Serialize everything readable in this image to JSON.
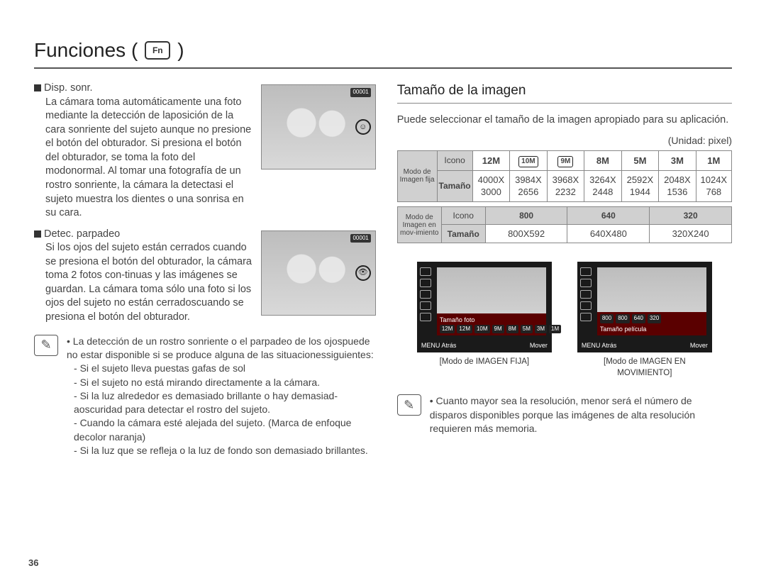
{
  "title": "Funciones (",
  "title_close": ")",
  "fn_icon_text": "Fn",
  "left": {
    "disp_sonr": {
      "heading": "Disp. sonr.",
      "body": "La cámara toma automáticamente una foto mediante la detección de laposición de la cara sonriente del sujeto aunque no presione el botón del obturador. Si presiona el botón del obturador, se toma la foto del modonormal. Al tomar una fotografía de un rostro sonriente, la cámara la detectasi el sujeto muestra los dientes o una sonrisa en su cara.",
      "thumb_badge": "00001",
      "thumb_ring": "☺"
    },
    "detec": {
      "heading": "Detec. parpadeo",
      "body": "Si los ojos del sujeto están cerrados cuando se presiona el botón del obturador, la cámara toma 2 fotos con-tinuas y las imágenes se guardan. La cámara toma sólo una foto si los ojos del sujeto no están cerradoscuando se presiona el botón del obturador.",
      "thumb_badge": "00001",
      "thumb_ring": "👁"
    },
    "note": {
      "lead": "La detección de un rostro sonriente o el parpadeo de los ojospuede no estar disponible si se produce alguna de las situacionessiguientes:",
      "items": [
        "Si el sujeto lleva puestas gafas de sol",
        "Si el sujeto no está mirando directamente a la cámara.",
        "Si la luz alrededor es demasiado brillante o hay demasiad-aoscuridad para detectar el rostro del sujeto.",
        "Cuando la cámara esté alejada del sujeto. (Marca de enfoque decolor naranja)",
        "Si la luz que se refleja o la luz de fondo son demasiado brillantes."
      ]
    }
  },
  "right": {
    "section_title": "Tamaño de la imagen",
    "intro": "Puede seleccionar el tamaño de la imagen apropiado para su aplicación.",
    "unit": "(Unidad: pixel)",
    "table1": {
      "row_label": "Modo de Imagen fija",
      "icono": "Icono",
      "tamano": "Tamaño",
      "icons": [
        "12M",
        "10M",
        "9M",
        "8M",
        "5M",
        "3M",
        "1M"
      ],
      "sizes": [
        "4000X 3000",
        "3984X 2656",
        "3968X 2232",
        "3264X 2448",
        "2592X 1944",
        "2048X 1536",
        "1024X 768"
      ]
    },
    "table2": {
      "row_label": "Modo de Imagen en mov-imiento",
      "icono": "Icono",
      "tamano": "Tamaño",
      "icons": [
        "800",
        "640",
        "320"
      ],
      "sizes": [
        "800X592",
        "640X480",
        "320X240"
      ]
    },
    "preview1": {
      "bar_label": "Tamaño foto",
      "options": [
        "12M",
        "12M",
        "10M",
        "9M",
        "8M",
        "5M",
        "3M",
        "1M"
      ],
      "foot_left": "MENU Atrás",
      "foot_right": "Mover",
      "caption": "[Modo de IMAGEN FIJA]"
    },
    "preview2": {
      "bar_label": "Tamaño película",
      "options": [
        "800",
        "800",
        "640",
        "320"
      ],
      "foot_left": "MENU Atrás",
      "foot_right": "Mover",
      "caption": "[Modo de IMAGEN EN MOVIMIENTO]"
    },
    "note2": "Cuanto mayor sea la resolución, menor será el número de disparos disponibles porque las imágenes de alta resolución requieren más memoria."
  },
  "pagenum": "36",
  "colors": {
    "bar_bg": "#5a0000",
    "header_gray": "#d0d0d0"
  }
}
